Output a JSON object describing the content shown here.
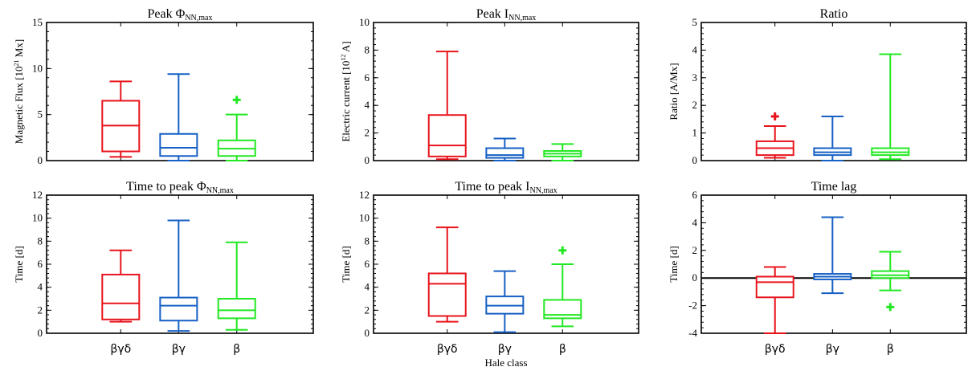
{
  "xlabel": "Hale class",
  "chart_data": [
    {
      "type": "box",
      "title": "Peak Φ",
      "title_sub": "NN,max",
      "ylabel": "Magnetic Flux [10",
      "ylabel_sup": "21",
      "ylabel_tail": " Mx]",
      "ylim": [
        0,
        15
      ],
      "yticks": [
        0,
        5,
        10,
        15
      ],
      "categories": [
        "βγδ",
        "βγ",
        "β"
      ],
      "colors": [
        "#e8141c",
        "#1660c4",
        "#22e822"
      ],
      "boxes": [
        {
          "lo": 0.4,
          "q1": 1.0,
          "med": 3.8,
          "q3": 6.5,
          "hi": 8.6,
          "outliers": []
        },
        {
          "lo": 0.0,
          "q1": 0.5,
          "med": 1.4,
          "q3": 2.9,
          "hi": 9.4,
          "outliers": []
        },
        {
          "lo": 0.0,
          "q1": 0.5,
          "med": 1.3,
          "q3": 2.2,
          "hi": 5.0,
          "outliers": [
            6.6
          ]
        }
      ]
    },
    {
      "type": "box",
      "title": "Peak  I",
      "title_sub": "NN,max",
      "ylabel": "Electric current [10",
      "ylabel_sup": "12",
      "ylabel_tail": " A]",
      "ylim": [
        0,
        10
      ],
      "yticks": [
        0,
        2,
        4,
        6,
        8,
        10
      ],
      "categories": [
        "βγδ",
        "βγ",
        "β"
      ],
      "colors": [
        "#e8141c",
        "#1660c4",
        "#22e822"
      ],
      "boxes": [
        {
          "lo": 0.1,
          "q1": 0.3,
          "med": 1.1,
          "q3": 3.3,
          "hi": 7.9,
          "outliers": []
        },
        {
          "lo": 0.0,
          "q1": 0.2,
          "med": 0.4,
          "q3": 0.9,
          "hi": 1.6,
          "outliers": []
        },
        {
          "lo": 0.0,
          "q1": 0.3,
          "med": 0.5,
          "q3": 0.7,
          "hi": 1.2,
          "outliers": []
        }
      ]
    },
    {
      "type": "box",
      "title": "Ratio",
      "title_sub": "",
      "ylabel": "Ratio [A/Mx]",
      "ylabel_sup": "",
      "ylabel_tail": "",
      "ylim": [
        0,
        5
      ],
      "yticks": [
        0,
        1,
        2,
        3,
        4,
        5
      ],
      "categories": [
        "βγδ",
        "βγ",
        "β"
      ],
      "colors": [
        "#e8141c",
        "#1660c4",
        "#22e822"
      ],
      "boxes": [
        {
          "lo": 0.1,
          "q1": 0.2,
          "med": 0.45,
          "q3": 0.7,
          "hi": 1.25,
          "outliers": [
            1.6
          ]
        },
        {
          "lo": 0.0,
          "q1": 0.2,
          "med": 0.3,
          "q3": 0.45,
          "hi": 1.6,
          "outliers": []
        },
        {
          "lo": 0.05,
          "q1": 0.2,
          "med": 0.3,
          "q3": 0.45,
          "hi": 3.85,
          "outliers": []
        }
      ]
    },
    {
      "type": "box",
      "title": "Time to peak Φ",
      "title_sub": "NN,max",
      "ylabel": "Time [d]",
      "ylabel_sup": "",
      "ylabel_tail": "",
      "ylim": [
        0,
        12
      ],
      "yticks": [
        0,
        2,
        4,
        6,
        8,
        10,
        12
      ],
      "categories": [
        "βγδ",
        "βγ",
        "β"
      ],
      "colors": [
        "#e8141c",
        "#1660c4",
        "#22e822"
      ],
      "boxes": [
        {
          "lo": 1.0,
          "q1": 1.2,
          "med": 2.6,
          "q3": 5.1,
          "hi": 7.2,
          "outliers": []
        },
        {
          "lo": 0.2,
          "q1": 1.1,
          "med": 2.4,
          "q3": 3.1,
          "hi": 9.8,
          "outliers": []
        },
        {
          "lo": 0.3,
          "q1": 1.3,
          "med": 2.0,
          "q3": 3.0,
          "hi": 7.9,
          "outliers": []
        }
      ]
    },
    {
      "type": "box",
      "title": "Time to peak I",
      "title_sub": "NN,max",
      "ylabel": "Time [d]",
      "ylabel_sup": "",
      "ylabel_tail": "",
      "ylim": [
        0,
        12
      ],
      "yticks": [
        0,
        2,
        4,
        6,
        8,
        10,
        12
      ],
      "categories": [
        "βγδ",
        "βγ",
        "β"
      ],
      "colors": [
        "#e8141c",
        "#1660c4",
        "#22e822"
      ],
      "boxes": [
        {
          "lo": 1.0,
          "q1": 1.5,
          "med": 4.3,
          "q3": 5.2,
          "hi": 9.2,
          "outliers": []
        },
        {
          "lo": 0.1,
          "q1": 1.7,
          "med": 2.4,
          "q3": 3.2,
          "hi": 5.4,
          "outliers": []
        },
        {
          "lo": 0.6,
          "q1": 1.3,
          "med": 1.6,
          "q3": 2.9,
          "hi": 6.0,
          "outliers": [
            7.2
          ]
        }
      ]
    },
    {
      "type": "box",
      "title": "Time lag",
      "title_sub": "",
      "ylabel": "Time [d]",
      "ylabel_sup": "",
      "ylabel_tail": "",
      "ylim": [
        -4,
        6
      ],
      "yticks": [
        -4,
        -2,
        0,
        2,
        4,
        6
      ],
      "zero_line": true,
      "categories": [
        "βγδ",
        "βγ",
        "β"
      ],
      "colors": [
        "#e8141c",
        "#1660c4",
        "#22e822"
      ],
      "boxes": [
        {
          "lo": -4.0,
          "q1": -1.4,
          "med": -0.3,
          "q3": 0.1,
          "hi": 0.8,
          "outliers": []
        },
        {
          "lo": -1.1,
          "q1": -0.1,
          "med": 0.1,
          "q3": 0.3,
          "hi": 4.4,
          "outliers": []
        },
        {
          "lo": -0.9,
          "q1": 0.0,
          "med": 0.2,
          "q3": 0.5,
          "hi": 1.9,
          "outliers": [
            -2.1
          ]
        }
      ]
    }
  ]
}
